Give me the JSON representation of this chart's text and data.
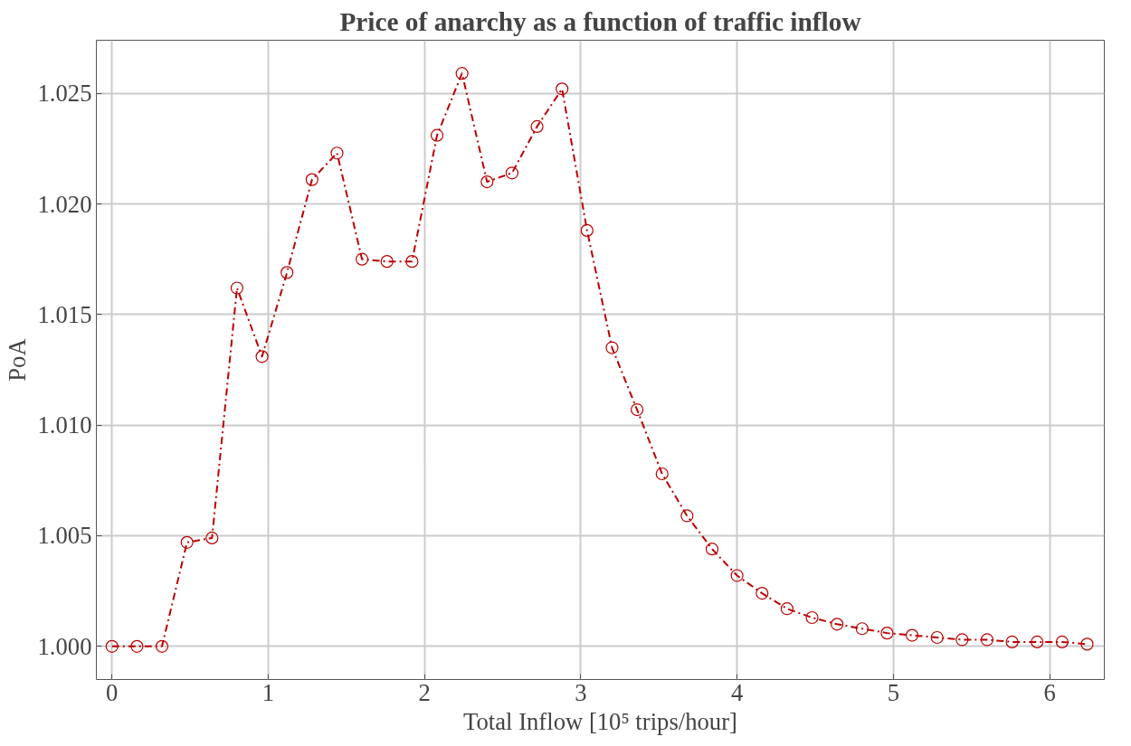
{
  "chart_data": {
    "type": "line",
    "title": "Price of anarchy as a function of traffic inflow",
    "xlabel": "Total Inflow [10⁵ trips/hour]",
    "ylabel": "PoA",
    "x": [
      0,
      0.16,
      0.32,
      0.48,
      0.64,
      0.8,
      0.96,
      1.12,
      1.28,
      1.44,
      1.6,
      1.76,
      1.92,
      2.08,
      2.24,
      2.4,
      2.56,
      2.72,
      2.88,
      3.04,
      3.2,
      3.36,
      3.52,
      3.68,
      3.84,
      4.0,
      4.16,
      4.32,
      4.48,
      4.64,
      4.8,
      4.96,
      5.12,
      5.28,
      5.44,
      5.6,
      5.76,
      5.92,
      6.08,
      6.24
    ],
    "series": [
      {
        "color": "#bb0000",
        "values": [
          1.0,
          1.0,
          1.0,
          1.0047,
          1.0049,
          1.0162,
          1.0131,
          1.0169,
          1.0211,
          1.0223,
          1.0175,
          1.0174,
          1.0174,
          1.0231,
          1.0259,
          1.021,
          1.0214,
          1.0235,
          1.0252,
          1.0188,
          1.0135,
          1.0107,
          1.0078,
          1.0059,
          1.0044,
          1.0032,
          1.0024,
          1.0017,
          1.0013,
          1.001,
          1.0008,
          1.0006,
          1.0005,
          1.0004,
          1.0003,
          1.0003,
          1.0002,
          1.0002,
          1.0002,
          1.0001
        ]
      }
    ],
    "xlim": [
      -0.1,
      6.35
    ],
    "ylim": [
      0.9985,
      1.0274
    ],
    "xticks": [
      0,
      1,
      2,
      3,
      4,
      5,
      6
    ],
    "yticks": [
      {
        "value": 1.0,
        "label": "1.000"
      },
      {
        "value": 1.005,
        "label": "1.005"
      },
      {
        "value": 1.01,
        "label": "1.010"
      },
      {
        "value": 1.015,
        "label": "1.015"
      },
      {
        "value": 1.02,
        "label": "1.020"
      },
      {
        "value": 1.025,
        "label": "1.025"
      }
    ],
    "grid": true,
    "marker": "circle",
    "line_style": "dashed"
  }
}
